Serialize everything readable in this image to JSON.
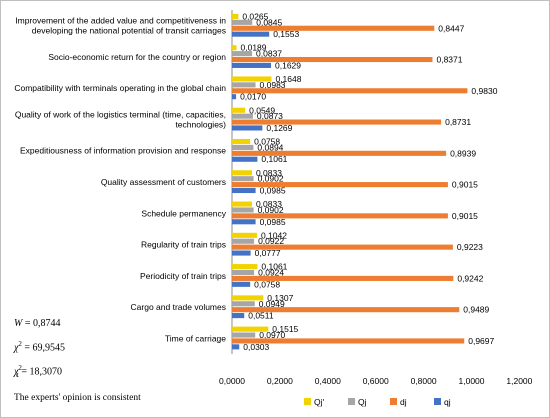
{
  "chart_data": {
    "type": "bar",
    "orientation": "horizontal",
    "categories": [
      [
        "Improvement of the added value and competitiveness in",
        "developing the national potential of transit carriages"
      ],
      [
        "Socio-economic return for the country or region"
      ],
      [
        "Compatibility with terminals operating in the global chain"
      ],
      [
        "Quality of work of the logistics terminal (time, capacities,",
        "technologies)"
      ],
      [
        "Expeditiousness of information provision and response"
      ],
      [
        "Quality assessment  of customers"
      ],
      [
        "Schedule permanency"
      ],
      [
        "Regularity of train trips"
      ],
      [
        "Periodicity of train trips"
      ],
      [
        "Cargo and trade volumes"
      ],
      [
        "Time of carriage"
      ]
    ],
    "series": [
      {
        "name": "Qj'",
        "color": "#f2d200",
        "values": [
          "0,0265",
          "0,0189",
          "0,1648",
          "0,0549",
          "0,0758",
          "0,0833",
          "0,0833",
          "0,1042",
          "0,1061",
          "0,1307",
          "0,1515"
        ]
      },
      {
        "name": "Qj",
        "color": "#a6a6a6",
        "values": [
          "0,0845",
          "0,0837",
          "0,0983",
          "0,0873",
          "0,0894",
          "0,0902",
          "0,0902",
          "0,0922",
          "0,0924",
          "0,0949",
          "0,0970"
        ]
      },
      {
        "name": "dj",
        "color": "#ed7d31",
        "values": [
          "0,8447",
          "0,8371",
          "0,9830",
          "0,8731",
          "0,8939",
          "0,9015",
          "0,9015",
          "0,9223",
          "0,9242",
          "0,9489",
          "0,9697"
        ]
      },
      {
        "name": "qj",
        "color": "#4472c4",
        "values": [
          "0,1553",
          "0,1629",
          "0,0170",
          "0,1269",
          "0,1061",
          "0,0985",
          "0,0985",
          "0,0777",
          "0,0758",
          "0,0511",
          "0,0303"
        ]
      }
    ],
    "xlim": [
      0,
      1.2
    ],
    "xticks": [
      "0,0000",
      "0,2000",
      "0,4000",
      "0,6000",
      "0,8000",
      "1,0000",
      "1,2000"
    ],
    "legend": "bottom",
    "grid": false
  },
  "stats": {
    "w_symbol": "W",
    "w_value": "= 0,8744",
    "chi_symbol": "χ",
    "chi_exp": "2",
    "chi_value": "= 69,9545",
    "chit_symbol": "χ",
    "chit_exp": "2",
    "chit_sub": "t",
    "chit_value": "= 18,3070",
    "conclusion": "The experts' opinion is consistent"
  }
}
